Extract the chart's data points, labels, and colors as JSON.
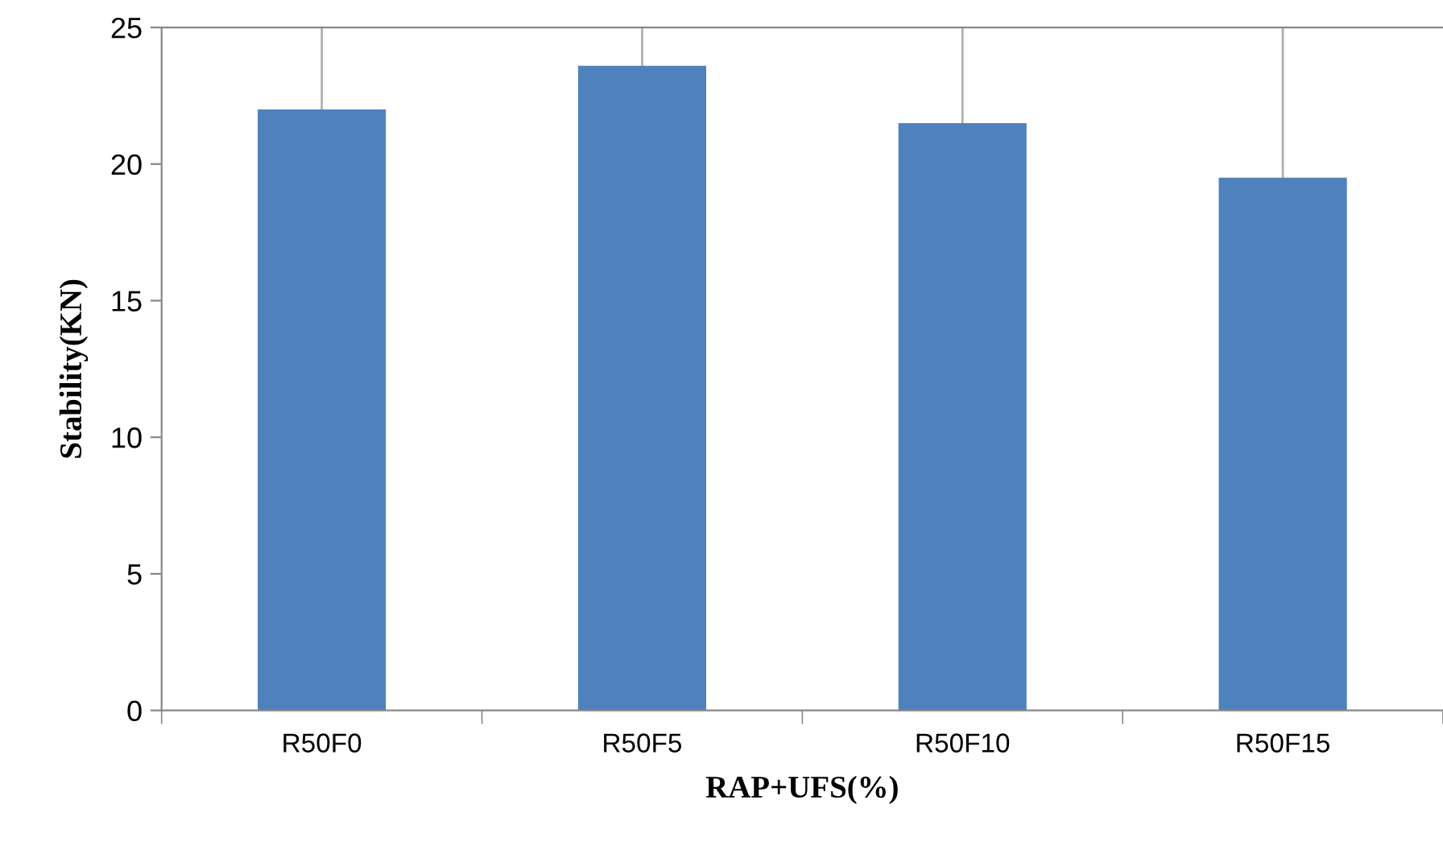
{
  "chart_data": {
    "type": "bar",
    "xlabel": "RAP+UFS(%)",
    "ylabel": "Stability(KN)",
    "categories": [
      "R50F0",
      "R50F5",
      "R50F10",
      "R50F15"
    ],
    "values": [
      22.0,
      23.6,
      21.5,
      19.5
    ],
    "color": "#4f81bd",
    "ylim": [
      0,
      25
    ],
    "yticks": [
      0,
      5,
      10,
      15,
      20,
      25
    ],
    "grid": "x"
  }
}
